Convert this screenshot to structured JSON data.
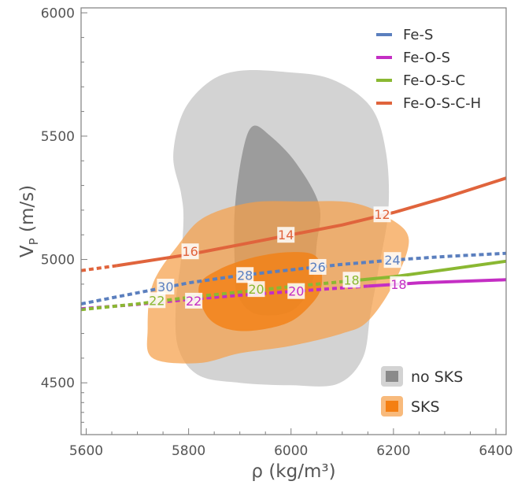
{
  "chart_data": {
    "type": "line",
    "title": "",
    "xlabel": "ρ (kg/m³)",
    "ylabel_main": "V",
    "ylabel_sub": "P",
    "ylabel_rest": " (m/s)",
    "xlim": [
      5590,
      6420
    ],
    "ylim": [
      4290,
      6020
    ],
    "xticks": [
      5600,
      5800,
      6000,
      6200,
      6400
    ],
    "yticks": [
      4500,
      5000,
      5500,
      6000
    ],
    "grid": false,
    "legend_position": "top-right",
    "series": [
      {
        "name": "Fe-S",
        "color": "#5b7fbe",
        "dashed_points": [
          [
            5590,
            4820
          ],
          [
            5700,
            4865
          ],
          [
            5800,
            4905
          ],
          [
            5900,
            4935
          ],
          [
            6000,
            4958
          ],
          [
            6100,
            4980
          ],
          [
            6200,
            4998
          ],
          [
            6300,
            5012
          ],
          [
            6420,
            5025
          ]
        ],
        "solid_points": [],
        "labels": [
          {
            "text": "30",
            "x": 5755,
            "y": 4890
          },
          {
            "text": "28",
            "x": 5910,
            "y": 4937
          },
          {
            "text": "26",
            "x": 6052,
            "y": 4970
          },
          {
            "text": "24",
            "x": 6198,
            "y": 4998
          }
        ]
      },
      {
        "name": "Fe-O-S",
        "color": "#c42ec4",
        "dashed_points": [
          [
            5590,
            4800
          ],
          [
            5700,
            4818
          ],
          [
            5800,
            4838
          ],
          [
            5900,
            4855
          ],
          [
            6000,
            4870
          ],
          [
            6100,
            4885
          ],
          [
            6150,
            4892
          ]
        ],
        "solid_points": [
          [
            6150,
            4892
          ],
          [
            6250,
            4905
          ],
          [
            6420,
            4918
          ]
        ],
        "labels": [
          {
            "text": "22",
            "x": 5810,
            "y": 4833
          },
          {
            "text": "20",
            "x": 6010,
            "y": 4872
          },
          {
            "text": "18",
            "x": 6210,
            "y": 4900
          }
        ]
      },
      {
        "name": "Fe-O-S-C",
        "color": "#8ab832",
        "dashed_points": [
          [
            5590,
            4797
          ],
          [
            5700,
            4820
          ],
          [
            5800,
            4846
          ],
          [
            5900,
            4868
          ],
          [
            6000,
            4890
          ],
          [
            6100,
            4910
          ]
        ],
        "solid_points": [
          [
            6100,
            4910
          ],
          [
            6200,
            4930
          ],
          [
            6300,
            4958
          ],
          [
            6420,
            4993
          ]
        ],
        "labels": [
          {
            "text": "22",
            "x": 5738,
            "y": 4835
          },
          {
            "text": "20",
            "x": 5932,
            "y": 4880
          },
          {
            "text": "18",
            "x": 6118,
            "y": 4918
          }
        ]
      },
      {
        "name": "Fe-O-S-C-H",
        "color": "#e0643c",
        "dashed_points": [
          [
            5590,
            4955
          ],
          [
            5660,
            4975
          ]
        ],
        "solid_points": [
          [
            5660,
            4975
          ],
          [
            5800,
            5020
          ],
          [
            5900,
            5060
          ],
          [
            6000,
            5100
          ],
          [
            6100,
            5140
          ],
          [
            6200,
            5190
          ],
          [
            6300,
            5250
          ],
          [
            6420,
            5330
          ]
        ],
        "labels": [
          {
            "text": "16",
            "x": 5803,
            "y": 5033
          },
          {
            "text": "14",
            "x": 5990,
            "y": 5100
          },
          {
            "text": "12",
            "x": 6178,
            "y": 5183
          }
        ]
      }
    ],
    "regions": [
      {
        "name": "no SKS",
        "color": "#c8c8c8",
        "opacity": 0.8,
        "outer": [
          [
            5790,
            5170
          ],
          [
            5785,
            5270
          ],
          [
            5770,
            5420
          ],
          [
            5790,
            5600
          ],
          [
            5840,
            5720
          ],
          [
            5900,
            5765
          ],
          [
            5990,
            5760
          ],
          [
            6080,
            5730
          ],
          [
            6155,
            5620
          ],
          [
            6185,
            5440
          ],
          [
            6190,
            5200
          ],
          [
            6170,
            4950
          ],
          [
            6155,
            4780
          ],
          [
            6140,
            4600
          ],
          [
            6090,
            4495
          ],
          [
            6000,
            4490
          ],
          [
            5900,
            4500
          ],
          [
            5820,
            4530
          ],
          [
            5780,
            4640
          ],
          [
            5775,
            4820
          ],
          [
            5785,
            5000
          ]
        ],
        "inner": [
          [
            5890,
            4980
          ],
          [
            5890,
            5200
          ],
          [
            5905,
            5430
          ],
          [
            5925,
            5540
          ],
          [
            5960,
            5500
          ],
          [
            6010,
            5390
          ],
          [
            6055,
            5220
          ],
          [
            6050,
            5060
          ],
          [
            6040,
            4900
          ],
          [
            6000,
            4790
          ],
          [
            5930,
            4780
          ],
          [
            5895,
            4860
          ]
        ]
      },
      {
        "name": "SKS",
        "color": "#f5a04a",
        "opacity": 0.72,
        "outer": [
          [
            5720,
            4720
          ],
          [
            5730,
            4900
          ],
          [
            5780,
            5060
          ],
          [
            5830,
            5170
          ],
          [
            5920,
            5230
          ],
          [
            6020,
            5235
          ],
          [
            6120,
            5230
          ],
          [
            6190,
            5170
          ],
          [
            6230,
            5080
          ],
          [
            6200,
            4900
          ],
          [
            6150,
            4750
          ],
          [
            6100,
            4700
          ],
          [
            6000,
            4650
          ],
          [
            5900,
            4620
          ],
          [
            5820,
            4580
          ],
          [
            5730,
            4600
          ]
        ],
        "inner": [
          [
            5820,
            4890
          ],
          [
            5860,
            4960
          ],
          [
            5930,
            5010
          ],
          [
            6000,
            5030
          ],
          [
            6050,
            5010
          ],
          [
            6060,
            4900
          ],
          [
            6040,
            4820
          ],
          [
            5990,
            4740
          ],
          [
            5900,
            4710
          ],
          [
            5840,
            4760
          ]
        ]
      }
    ]
  },
  "legend_regions": [
    "no SKS",
    "SKS"
  ]
}
